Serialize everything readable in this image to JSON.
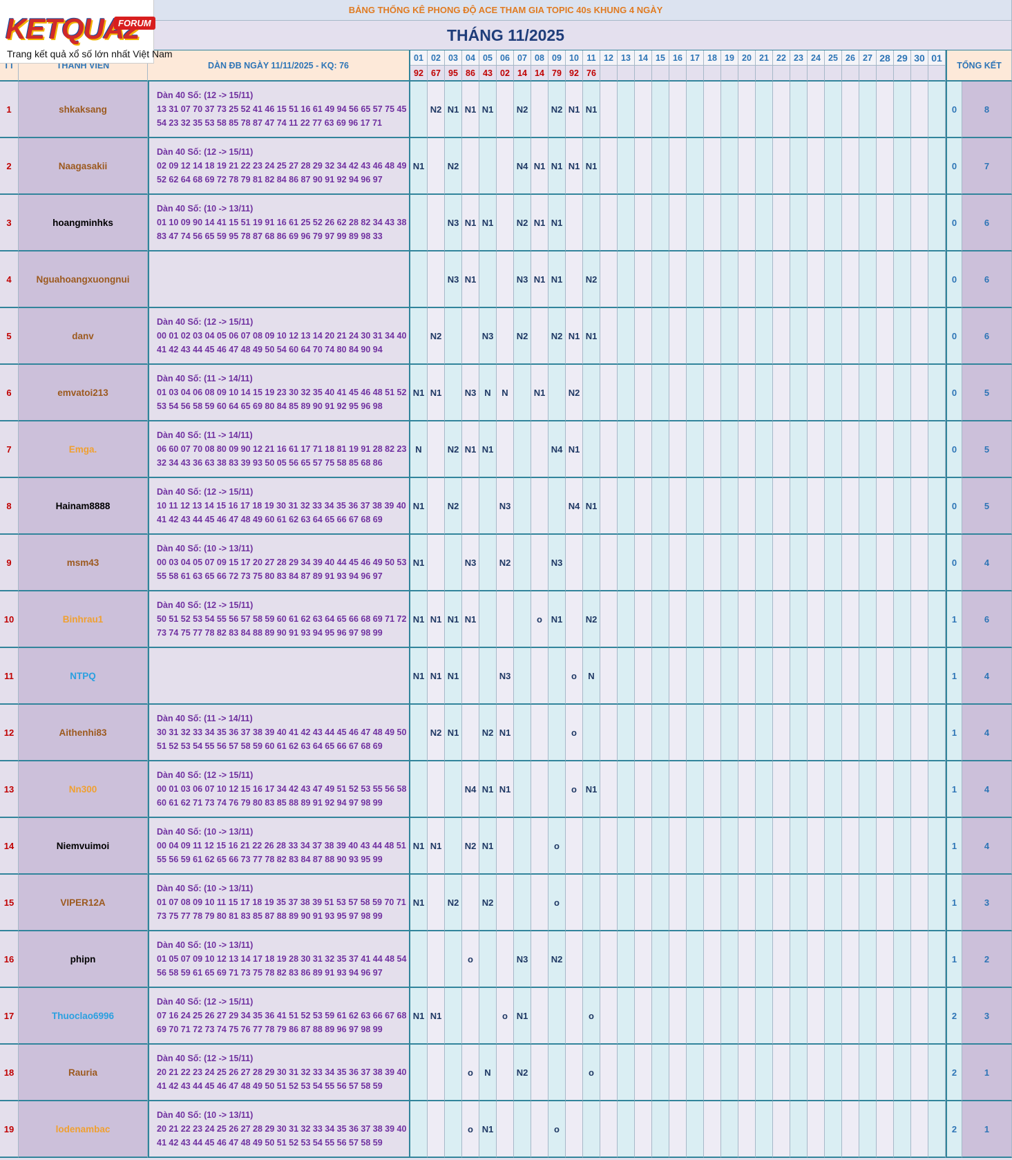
{
  "logo": {
    "brand": "KETQUA2",
    "badge": "FORUM",
    "tagline": "Trang kết quả xổ số lớn nhất Việt Nam"
  },
  "header": {
    "title": "BẢNG THỐNG KÊ PHONG ĐỘ ACE THAM GIA TOPIC 40s KHUNG 4 NGÀY",
    "month": "THÁNG 11/2025"
  },
  "columns": {
    "tt": "TT",
    "member": "THÀNH VIÊN",
    "dan": "DÀN ĐB NGÀY 11/11/2025 - KQ: 76",
    "days": [
      "01",
      "02",
      "03",
      "04",
      "05",
      "06",
      "07",
      "08",
      "09",
      "10",
      "11",
      "12",
      "13",
      "14",
      "15",
      "16",
      "17",
      "18",
      "19",
      "20",
      "21",
      "22",
      "23",
      "24",
      "25",
      "26",
      "27",
      "28",
      "29",
      "30",
      "01"
    ],
    "results": [
      "92",
      "67",
      "95",
      "86",
      "43",
      "02",
      "14",
      "14",
      "79",
      "92",
      "76"
    ],
    "total": "TỔNG KẾT"
  },
  "members": [
    {
      "tt": "1",
      "name": "shkaksang",
      "color": "#9c5a1f",
      "dan_title": "Dàn 40 Số: (12 -> 15/11)",
      "dan": [
        "13 31 07 70 37 73 25 52 41 46 15 51 16 61 49 94 56 65 57 75 45",
        "54 23 32 35 53 58 85 78 87 47 74 11 22 77 63 69 96 17 71"
      ],
      "marks": [
        null,
        "N2",
        "N1",
        "N1",
        "N1",
        null,
        "N2",
        null,
        "N2",
        "N1",
        "N1"
      ],
      "miss": "0",
      "total": "8"
    },
    {
      "tt": "2",
      "name": "Naagasakii",
      "color": "#9c5a1f",
      "dan_title": "Dàn 40 Số: (12 -> 15/11)",
      "dan": [
        "02 09 12 14 18 19 21 22 23 24 25 27 28 29 32 34 42 43 46 48 49",
        "52 62 64 68 69 72 78 79 81 82 84 86 87 90 91 92 94 96 97"
      ],
      "marks": [
        "N1",
        null,
        "N2",
        null,
        null,
        null,
        "N4",
        "N1",
        "N1",
        "N1",
        "N1"
      ],
      "miss": "0",
      "total": "7"
    },
    {
      "tt": "3",
      "name": "hoangminhks",
      "color": "#000000",
      "dan_title": "Dàn 40 Số: (10 -> 13/11)",
      "dan": [
        "01 10 09 90 14 41 15 51 19 91 16 61 25 52 26 62 28 82 34 43 38",
        "83 47 74 56 65 59 95 78 87 68 86 69 96 79 97 99 89 98 33"
      ],
      "marks": [
        null,
        null,
        "N3",
        "N1",
        "N1",
        null,
        "N2",
        "N1",
        "N1",
        null,
        null
      ],
      "miss": "0",
      "total": "6"
    },
    {
      "tt": "4",
      "name": "Nguahoangxuongnui",
      "color": "#9c5a1f",
      "marks": [
        null,
        null,
        "N3",
        "N1",
        null,
        null,
        "N3",
        "N1",
        "N1",
        null,
        "N2"
      ],
      "miss": "0",
      "total": "6"
    },
    {
      "tt": "5",
      "name": "danv",
      "color": "#9c5a1f",
      "dan_title": "Dàn 40 Số: (12 -> 15/11)",
      "dan": [
        "00 01 02 03 04 05 06 07 08 09 10 12 13 14 20 21 24 30 31 34 40",
        "41 42 43 44 45 46 47 48 49 50 54 60 64 70 74 80 84 90 94"
      ],
      "marks": [
        null,
        "N2",
        null,
        null,
        "N3",
        null,
        "N2",
        null,
        "N2",
        "N1",
        "N1"
      ],
      "miss": "0",
      "total": "6"
    },
    {
      "tt": "6",
      "name": "emvatoi213",
      "color": "#9c5a1f",
      "dan_title": "Dàn 40 Số: (11 -> 14/11)",
      "dan": [
        "01 03 04 06 08 09 10 14 15 19 23 30 32 35 40 41 45 46 48 51 52",
        "53 54 56 58 59 60 64 65 69 80 84 85 89 90 91 92 95 96 98"
      ],
      "marks": [
        "N1",
        "N1",
        null,
        "N3",
        "N",
        "N",
        null,
        "N1",
        null,
        "N2",
        null
      ],
      "miss": "0",
      "total": "5"
    },
    {
      "tt": "7",
      "name": "Emga.",
      "color": "#f0a030",
      "dan_title": "Dàn 40 Số: (11 -> 14/11)",
      "dan": [
        "06 60 07 70 08 80 09 90 12 21 16 61 17 71 18 81 19 91 28 82 23",
        "32 34 43 36 63 38 83 39 93 50 05 56 65 57 75 58 85 68 86"
      ],
      "marks": [
        "N",
        null,
        "N2",
        "N1",
        "N1",
        null,
        null,
        null,
        "N4",
        "N1",
        null
      ],
      "miss": "0",
      "total": "5"
    },
    {
      "tt": "8",
      "name": "Hainam8888",
      "color": "#000000",
      "dan_title": "Dàn 40 Số: (12 -> 15/11)",
      "dan": [
        "10 11 12 13 14 15 16 17 18 19 30 31 32 33 34 35 36 37 38 39 40",
        "41 42 43 44 45 46 47 48 49 60 61 62 63 64 65 66 67 68 69"
      ],
      "marks": [
        "N1",
        null,
        "N2",
        null,
        null,
        "N3",
        null,
        null,
        null,
        "N4",
        "N1"
      ],
      "miss": "0",
      "total": "5"
    },
    {
      "tt": "9",
      "name": "msm43",
      "color": "#9c5a1f",
      "dan_title": "Dàn 40 Số: (10 -> 13/11)",
      "dan": [
        "00 03 04 05 07 09 15 17 20 27 28 29 34 39 40 44 45 46 49 50 53",
        "55 58 61 63 65 66 72 73 75 80 83 84 87 89 91 93 94 96 97"
      ],
      "marks": [
        "N1",
        null,
        null,
        "N3",
        null,
        "N2",
        null,
        null,
        "N3",
        null,
        null
      ],
      "miss": "0",
      "total": "4"
    },
    {
      "tt": "10",
      "name": "Binhrau1",
      "color": "#f0a030",
      "dan_title": "Dàn 40 Số: (12 -> 15/11)",
      "dan": [
        "50 51 52 53 54 55 56 57 58 59 60 61 62 63 64 65 66 68 69 71 72",
        "73 74 75 77 78 82 83 84 88 89 90 91 93 94 95 96 97 98 99"
      ],
      "marks": [
        "N1",
        "N1",
        "N1",
        "N1",
        null,
        null,
        null,
        "o",
        "N1",
        null,
        "N2"
      ],
      "miss": "1",
      "total": "6"
    },
    {
      "tt": "11",
      "name": "NTPQ",
      "color": "#2aa0e0",
      "marks": [
        "N1",
        "N1",
        "N1",
        null,
        null,
        "N3",
        null,
        null,
        null,
        "o",
        "N"
      ],
      "miss": "1",
      "total": "4"
    },
    {
      "tt": "12",
      "name": "Aithenhi83",
      "color": "#9c5a1f",
      "dan_title": "Dàn 40 Số: (11 -> 14/11)",
      "dan": [
        "30 31 32 33 34 35 36 37 38 39 40 41 42 43 44 45 46 47 48 49 50",
        "51 52 53 54 55 56 57 58 59 60 61 62 63 64 65 66 67 68 69"
      ],
      "marks": [
        null,
        "N2",
        "N1",
        null,
        "N2",
        "N1",
        null,
        null,
        null,
        "o",
        null
      ],
      "miss": "1",
      "total": "4"
    },
    {
      "tt": "13",
      "name": "Nn300",
      "color": "#f0a030",
      "dan_title": "Dàn 40 Số: (12 -> 15/11)",
      "dan": [
        "00 01 03 06 07 10 12 15 16 17 34 42 43 47 49 51 52 53 55 56 58",
        "60 61 62 71 73 74 76 79 80 83 85 88 89 91 92 94 97 98 99"
      ],
      "marks": [
        null,
        null,
        null,
        "N4",
        "N1",
        "N1",
        null,
        null,
        null,
        "o",
        "N1"
      ],
      "miss": "1",
      "total": "4"
    },
    {
      "tt": "14",
      "name": "Niemvuimoi",
      "color": "#000000",
      "dan_title": "Dàn 40 Số: (10 -> 13/11)",
      "dan": [
        "00 04 09 11 12 15 16 21 22 26 28 33 34 37 38 39 40 43 44 48 51",
        "55 56 59 61 62 65 66 73 77 78 82 83 84 87 88 90 93 95 99"
      ],
      "marks": [
        "N1",
        "N1",
        null,
        "N2",
        "N1",
        null,
        null,
        null,
        "o",
        null,
        null
      ],
      "miss": "1",
      "total": "4"
    },
    {
      "tt": "15",
      "name": "VIPER12A",
      "color": "#9c5a1f",
      "dan_title": "Dàn 40 Số: (10 -> 13/11)",
      "dan": [
        "01 07 08 09 10 11 15 17 18 19 35 37 38 39 51 53 57 58 59 70 71",
        "73 75 77 78 79 80 81 83 85 87 88 89 90 91 93 95 97 98 99"
      ],
      "marks": [
        "N1",
        null,
        "N2",
        null,
        "N2",
        null,
        null,
        null,
        "o",
        null,
        null
      ],
      "miss": "1",
      "total": "3"
    },
    {
      "tt": "16",
      "name": "phipn",
      "color": "#000000",
      "dan_title": "Dàn 40 Số: (10 -> 13/11)",
      "dan": [
        "01 05 07 09 10 12 13 14 17 18 19 28 30 31 32 35 37 41 44 48 54",
        "56 58 59 61 65 69 71 73 75 78 82 83 86 89 91 93 94 96 97"
      ],
      "marks": [
        null,
        null,
        null,
        "o",
        null,
        null,
        "N3",
        null,
        "N2",
        null,
        null
      ],
      "miss": "1",
      "total": "2"
    },
    {
      "tt": "17",
      "name": "Thuoclao6996",
      "color": "#2aa0e0",
      "dan_title": "Dàn 40 Số: (12 -> 15/11)",
      "dan": [
        "07 16 24 25 26 27 29 34 35 36 41 51 52 53 59 61 62 63 66 67 68",
        "69 70 71 72 73 74 75 76 77 78 79 86 87 88 89 96 97 98 99"
      ],
      "marks": [
        "N1",
        "N1",
        null,
        null,
        null,
        "o",
        "N1",
        null,
        null,
        null,
        "o"
      ],
      "miss": "2",
      "total": "3"
    },
    {
      "tt": "18",
      "name": "Rauria",
      "color": "#9c5a1f",
      "dan_title": "Dàn 40 Số: (12 -> 15/11)",
      "dan": [
        "20 21 22 23 24 25 26 27 28 29 30 31 32 33 34 35 36 37 38 39 40",
        "41 42 43 44 45 46 47 48 49 50 51 52 53 54 55 56 57 58 59"
      ],
      "marks": [
        null,
        null,
        null,
        "o",
        "N",
        null,
        "N2",
        null,
        null,
        null,
        "o"
      ],
      "miss": "2",
      "total": "1"
    },
    {
      "tt": "19",
      "name": "lodenambac",
      "color": "#f0a030",
      "dan_title": "Dàn 40 Số: (10 -> 13/11)",
      "dan": [
        "20 21 22 23 24 25 26 27 28 29 30 31 32 33 34 35 36 37 38 39 40",
        "41 42 43 44 45 46 47 48 49 50 51 52 53 54 55 56 57 58 59"
      ],
      "marks": [
        null,
        null,
        null,
        "o",
        "N1",
        null,
        null,
        null,
        "o",
        null,
        null
      ],
      "miss": "2",
      "total": "1"
    }
  ]
}
